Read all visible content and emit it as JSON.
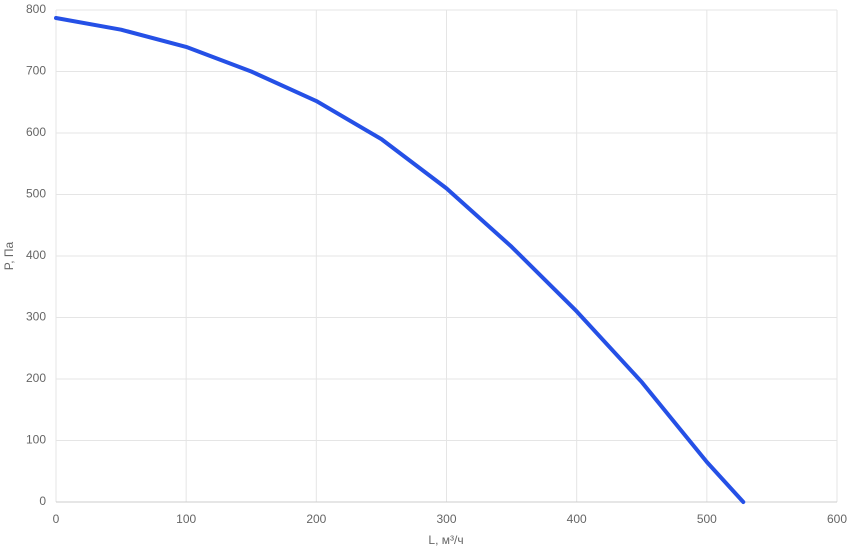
{
  "chart_data": {
    "type": "line",
    "x_label": "L, м³/ч",
    "y_label": "P, Па",
    "x": [
      0,
      50,
      100,
      150,
      200,
      250,
      300,
      350,
      400,
      450,
      500,
      528
    ],
    "series": [
      {
        "name": "P",
        "color": "#2550e6",
        "values": [
          787,
          768,
          740,
          700,
          652,
          590,
          510,
          415,
          310,
          195,
          65,
          0
        ]
      }
    ],
    "xlim": [
      0,
      600
    ],
    "xticks": [
      0,
      100,
      200,
      300,
      400,
      500,
      600
    ],
    "ylim": [
      0,
      800
    ],
    "yticks": [
      0,
      100,
      200,
      300,
      400,
      500,
      600,
      700,
      800
    ],
    "grid": true
  }
}
